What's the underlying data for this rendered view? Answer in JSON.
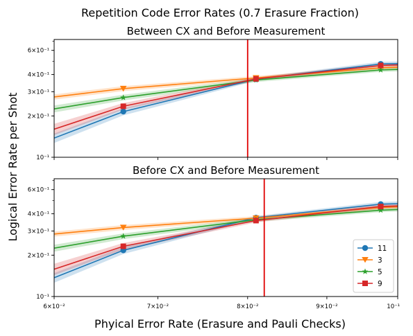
{
  "figure": {
    "suptitle": "Repetition Code Error Rates (0.7 Erasure Fraction)",
    "xlabel": "Phyical Error Rate (Erasure and Pauli Checks)",
    "ylabel": "Logical Error Rate per Shot"
  },
  "colors": {
    "series_11": "#1f77b4",
    "series_3": "#ff7f0e",
    "series_5": "#2ca02c",
    "series_9": "#d62728",
    "threshold_line": "#e00000"
  },
  "chart_data": [
    {
      "type": "line",
      "title": "Between CX and Before Measurement",
      "x_scale": "log",
      "y_scale": "log",
      "xlim": [
        0.06,
        0.1
      ],
      "ylim": [
        0.1,
        0.72
      ],
      "x_ticks": [
        {
          "value": 0.06,
          "label": ""
        },
        {
          "value": 0.07,
          "label": ""
        },
        {
          "value": 0.08,
          "label": ""
        },
        {
          "value": 0.09,
          "label": ""
        },
        {
          "value": 0.1,
          "label": ""
        }
      ],
      "y_ticks": [
        {
          "value": 0.1,
          "label": "10⁻¹"
        },
        {
          "value": 0.2,
          "label": "2×10⁻¹"
        },
        {
          "value": 0.3,
          "label": "3×10⁻¹"
        },
        {
          "value": 0.4,
          "label": "4×10⁻¹"
        },
        {
          "value": 0.6,
          "label": "6×10⁻¹"
        }
      ],
      "threshold_x": 0.08,
      "series": [
        {
          "name": "11",
          "marker": "circle",
          "color_key": "series_11",
          "points": [
            [
              0.06,
              0.138
            ],
            [
              0.0665,
              0.215
            ],
            [
              0.081,
              0.37
            ],
            [
              0.0975,
              0.478
            ],
            [
              0.1,
              0.48
            ]
          ],
          "marker_points": [
            [
              0.0665,
              0.215
            ],
            [
              0.081,
              0.37
            ],
            [
              0.0975,
              0.478
            ]
          ],
          "band": [
            0.011,
            0.013,
            0.01,
            0.018
          ]
        },
        {
          "name": "3",
          "marker": "triangle-down",
          "color_key": "series_3",
          "points": [
            [
              0.06,
              0.275
            ],
            [
              0.0665,
              0.316
            ],
            [
              0.081,
              0.378
            ],
            [
              0.0975,
              0.448
            ],
            [
              0.1,
              0.452
            ]
          ],
          "marker_points": [
            [
              0.0665,
              0.316
            ],
            [
              0.081,
              0.378
            ],
            [
              0.0975,
              0.448
            ]
          ],
          "band": [
            0.012,
            0.013,
            0.012,
            0.014
          ]
        },
        {
          "name": "5",
          "marker": "star",
          "color_key": "series_5",
          "points": [
            [
              0.06,
              0.225
            ],
            [
              0.0665,
              0.272
            ],
            [
              0.081,
              0.365
            ],
            [
              0.0975,
              0.432
            ],
            [
              0.1,
              0.436
            ]
          ],
          "marker_points": [
            [
              0.0665,
              0.272
            ],
            [
              0.081,
              0.365
            ],
            [
              0.0975,
              0.432
            ]
          ],
          "band": [
            0.013,
            0.013,
            0.012,
            0.014
          ]
        },
        {
          "name": "9",
          "marker": "square",
          "color_key": "series_9",
          "points": [
            [
              0.06,
              0.16
            ],
            [
              0.0665,
              0.235
            ],
            [
              0.081,
              0.372
            ],
            [
              0.0975,
              0.466
            ],
            [
              0.1,
              0.47
            ]
          ],
          "marker_points": [
            [
              0.0665,
              0.235
            ],
            [
              0.081,
              0.372
            ],
            [
              0.0975,
              0.466
            ]
          ],
          "band": [
            0.015,
            0.013,
            0.011,
            0.016
          ]
        }
      ]
    },
    {
      "type": "line",
      "title": "Before CX and Before Measurement",
      "x_scale": "log",
      "y_scale": "log",
      "xlim": [
        0.06,
        0.1
      ],
      "ylim": [
        0.1,
        0.72
      ],
      "x_ticks": [
        {
          "value": 0.06,
          "label": "6×10⁻²"
        },
        {
          "value": 0.07,
          "label": "7×10⁻²"
        },
        {
          "value": 0.08,
          "label": "8×10⁻²"
        },
        {
          "value": 0.09,
          "label": "9×10⁻²"
        },
        {
          "value": 0.1,
          "label": "10⁻¹"
        }
      ],
      "y_ticks": [
        {
          "value": 0.1,
          "label": "10⁻¹"
        },
        {
          "value": 0.2,
          "label": "2×10⁻¹"
        },
        {
          "value": 0.3,
          "label": "3×10⁻¹"
        },
        {
          "value": 0.4,
          "label": "4×10⁻¹"
        },
        {
          "value": 0.6,
          "label": "6×10⁻¹"
        }
      ],
      "threshold_x": 0.082,
      "series": [
        {
          "name": "11",
          "marker": "circle",
          "color_key": "series_11",
          "points": [
            [
              0.06,
              0.137
            ],
            [
              0.0665,
              0.217
            ],
            [
              0.081,
              0.375
            ],
            [
              0.0975,
              0.47
            ],
            [
              0.1,
              0.474
            ]
          ],
          "marker_points": [
            [
              0.0665,
              0.217
            ],
            [
              0.081,
              0.375
            ],
            [
              0.0975,
              0.47
            ]
          ],
          "band": [
            0.011,
            0.013,
            0.011,
            0.018
          ]
        },
        {
          "name": "3",
          "marker": "triangle-down",
          "color_key": "series_3",
          "points": [
            [
              0.06,
              0.285
            ],
            [
              0.0665,
              0.318
            ],
            [
              0.081,
              0.372
            ],
            [
              0.0975,
              0.445
            ],
            [
              0.1,
              0.45
            ]
          ],
          "marker_points": [
            [
              0.0665,
              0.318
            ],
            [
              0.081,
              0.372
            ],
            [
              0.0975,
              0.445
            ]
          ],
          "band": [
            0.012,
            0.013,
            0.012,
            0.014
          ]
        },
        {
          "name": "5",
          "marker": "star",
          "color_key": "series_5",
          "points": [
            [
              0.06,
              0.225
            ],
            [
              0.0665,
              0.275
            ],
            [
              0.081,
              0.362
            ],
            [
              0.0975,
              0.425
            ],
            [
              0.1,
              0.43
            ]
          ],
          "marker_points": [
            [
              0.0665,
              0.275
            ],
            [
              0.081,
              0.362
            ],
            [
              0.0975,
              0.425
            ]
          ],
          "band": [
            0.013,
            0.013,
            0.012,
            0.014
          ]
        },
        {
          "name": "9",
          "marker": "square",
          "color_key": "series_9",
          "points": [
            [
              0.06,
              0.158
            ],
            [
              0.0665,
              0.232
            ],
            [
              0.081,
              0.357
            ],
            [
              0.0975,
              0.452
            ],
            [
              0.1,
              0.456
            ]
          ],
          "marker_points": [
            [
              0.0665,
              0.232
            ],
            [
              0.081,
              0.357
            ],
            [
              0.0975,
              0.452
            ]
          ],
          "band": [
            0.015,
            0.013,
            0.011,
            0.016
          ]
        }
      ]
    }
  ],
  "legend": {
    "placement": "lower-right of bottom panel",
    "entries": [
      {
        "label": "11",
        "marker": "circle",
        "color_key": "series_11"
      },
      {
        "label": "3",
        "marker": "triangle-down",
        "color_key": "series_3"
      },
      {
        "label": "5",
        "marker": "star",
        "color_key": "series_5"
      },
      {
        "label": "9",
        "marker": "square",
        "color_key": "series_9"
      }
    ]
  }
}
